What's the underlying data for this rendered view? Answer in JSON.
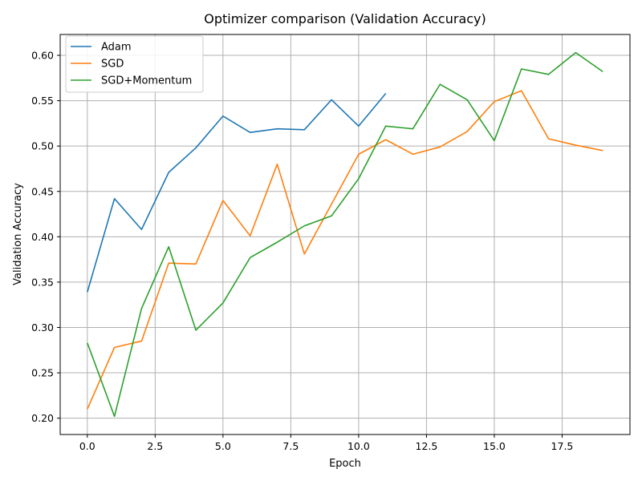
{
  "chart_data": {
    "type": "line",
    "title": "Optimizer comparison (Validation Accuracy)",
    "xlabel": "Epoch",
    "ylabel": "Validation Accuracy",
    "xlim": [
      -1.0,
      20.0
    ],
    "ylim": [
      0.182,
      0.623
    ],
    "xticks": [
      0.0,
      2.5,
      5.0,
      7.5,
      10.0,
      12.5,
      15.0,
      17.5
    ],
    "xtick_labels": [
      "0.0",
      "2.5",
      "5.0",
      "7.5",
      "10.0",
      "12.5",
      "15.0",
      "17.5"
    ],
    "yticks": [
      0.2,
      0.25,
      0.3,
      0.35,
      0.4,
      0.45,
      0.5,
      0.55,
      0.6
    ],
    "ytick_labels": [
      "0.20",
      "0.25",
      "0.30",
      "0.35",
      "0.40",
      "0.45",
      "0.50",
      "0.55",
      "0.60"
    ],
    "grid": true,
    "legend_position": "top-left",
    "series": [
      {
        "name": "Adam",
        "color": "#1f77b4",
        "x": [
          0,
          1,
          2,
          3,
          4,
          5,
          6,
          7,
          8,
          9,
          10,
          11
        ],
        "values": [
          0.339,
          0.442,
          0.408,
          0.471,
          0.498,
          0.533,
          0.515,
          0.519,
          0.518,
          0.551,
          0.522,
          0.558
        ]
      },
      {
        "name": "SGD",
        "color": "#ff7f0e",
        "x": [
          0,
          1,
          2,
          3,
          4,
          5,
          6,
          7,
          8,
          9,
          10,
          11,
          12,
          13,
          14,
          15,
          16,
          17,
          18,
          19
        ],
        "values": [
          0.21,
          0.278,
          0.285,
          0.371,
          0.37,
          0.44,
          0.401,
          0.48,
          0.381,
          0.436,
          0.491,
          0.507,
          0.491,
          0.499,
          0.516,
          0.549,
          0.561,
          0.508,
          0.501,
          0.495
        ]
      },
      {
        "name": "SGD+Momentum",
        "color": "#2ca02c",
        "x": [
          0,
          1,
          2,
          3,
          4,
          5,
          6,
          7,
          8,
          9,
          10,
          11,
          12,
          13,
          14,
          15,
          16,
          17,
          18,
          19
        ],
        "values": [
          0.283,
          0.202,
          0.321,
          0.389,
          0.297,
          0.327,
          0.377,
          0.394,
          0.412,
          0.423,
          0.464,
          0.522,
          0.519,
          0.568,
          0.551,
          0.506,
          0.585,
          0.579,
          0.603,
          0.582
        ]
      }
    ]
  }
}
